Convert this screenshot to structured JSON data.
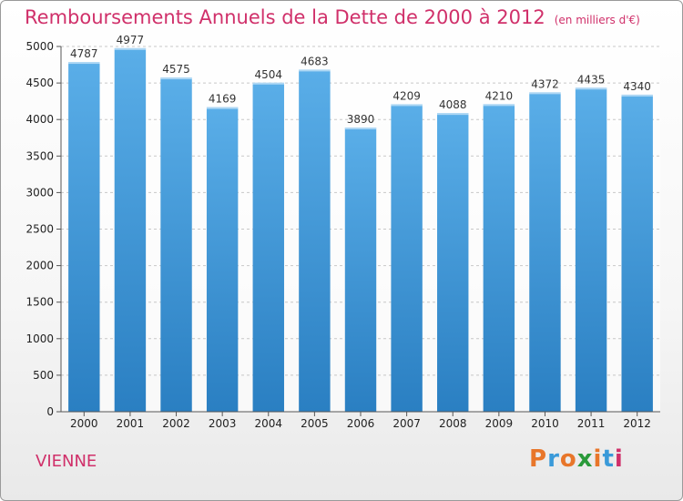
{
  "header": {
    "title": "Remboursements Annuels de la Dette de 2000 à 2012",
    "subtitle": "(en milliers d'€)"
  },
  "footer": {
    "commune": "VIENNE",
    "logo": [
      "P",
      "r",
      "o",
      "x",
      "i",
      "t",
      "i"
    ]
  },
  "colors": {
    "accent": "#d0306a",
    "bar_top": "#5aaee8",
    "bar_bottom": "#2a7fc2",
    "logo": [
      "#e8762a",
      "#3a9ad9",
      "#e8762a",
      "#2a9a3a",
      "#e8762a",
      "#3a9ad9",
      "#d0306a"
    ]
  },
  "chart_data": {
    "type": "bar",
    "categories": [
      "2000",
      "2001",
      "2002",
      "2003",
      "2004",
      "2005",
      "2006",
      "2007",
      "2008",
      "2009",
      "2010",
      "2011",
      "2012"
    ],
    "values": [
      4787,
      4977,
      4575,
      4169,
      4504,
      4683,
      3890,
      4209,
      4088,
      4210,
      4372,
      4435,
      4340
    ],
    "data_labels": [
      "4787",
      "4977",
      "4575",
      "4169",
      "4504",
      "4683",
      "3890",
      "4209",
      "4088",
      "4210",
      "4372",
      "4435",
      "4340"
    ],
    "y_ticks": [
      "0",
      "500",
      "1000",
      "1500",
      "2000",
      "2500",
      "3000",
      "3500",
      "4000",
      "4500",
      "5000"
    ],
    "ylim": [
      0,
      5000
    ],
    "grid": true
  }
}
